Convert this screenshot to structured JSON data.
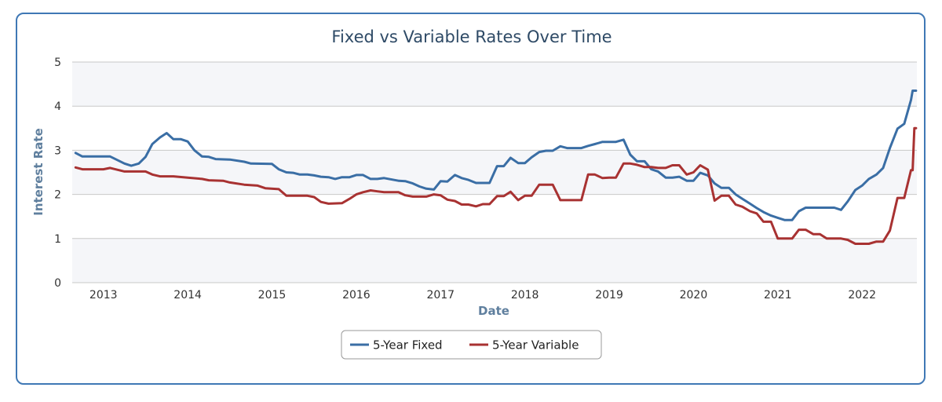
{
  "colors": {
    "frame": "#3f78b5",
    "fixed": "#3a6ea5",
    "variable": "#a83232",
    "grid": "#c8c8c8",
    "band": "#f5f6f9"
  },
  "chart_data": {
    "type": "line",
    "title": "Fixed vs Variable Rates Over Time",
    "xlabel": "Date",
    "ylabel": "Interest Rate",
    "xlim": [
      2012.63,
      2022.65
    ],
    "ylim": [
      0,
      5
    ],
    "yticks": [
      "0",
      "1",
      "2",
      "3",
      "4",
      "5"
    ],
    "xticks": [
      "2013",
      "2014",
      "2015",
      "2016",
      "2017",
      "2018",
      "2019",
      "2020",
      "2021",
      "2022"
    ],
    "grid": true,
    "legend": "bottom-center",
    "series": [
      {
        "name": "5-Year Fixed",
        "color": "#3a6ea5",
        "points": [
          [
            2012.67,
            2.94
          ],
          [
            2012.75,
            2.86
          ],
          [
            2013.0,
            2.86
          ],
          [
            2013.08,
            2.86
          ],
          [
            2013.25,
            2.7
          ],
          [
            2013.33,
            2.65
          ],
          [
            2013.42,
            2.7
          ],
          [
            2013.5,
            2.85
          ],
          [
            2013.58,
            3.14
          ],
          [
            2013.67,
            3.29
          ],
          [
            2013.75,
            3.39
          ],
          [
            2013.83,
            3.25
          ],
          [
            2013.92,
            3.25
          ],
          [
            2014.0,
            3.2
          ],
          [
            2014.08,
            3.0
          ],
          [
            2014.17,
            2.86
          ],
          [
            2014.25,
            2.85
          ],
          [
            2014.33,
            2.8
          ],
          [
            2014.5,
            2.79
          ],
          [
            2014.67,
            2.74
          ],
          [
            2014.75,
            2.7
          ],
          [
            2015.0,
            2.69
          ],
          [
            2015.08,
            2.57
          ],
          [
            2015.17,
            2.5
          ],
          [
            2015.25,
            2.49
          ],
          [
            2015.33,
            2.45
          ],
          [
            2015.42,
            2.45
          ],
          [
            2015.5,
            2.43
          ],
          [
            2015.58,
            2.4
          ],
          [
            2015.67,
            2.39
          ],
          [
            2015.75,
            2.35
          ],
          [
            2015.83,
            2.39
          ],
          [
            2015.92,
            2.39
          ],
          [
            2016.0,
            2.44
          ],
          [
            2016.08,
            2.44
          ],
          [
            2016.17,
            2.35
          ],
          [
            2016.25,
            2.35
          ],
          [
            2016.33,
            2.37
          ],
          [
            2016.5,
            2.31
          ],
          [
            2016.58,
            2.3
          ],
          [
            2016.67,
            2.25
          ],
          [
            2016.75,
            2.18
          ],
          [
            2016.83,
            2.13
          ],
          [
            2016.92,
            2.11
          ],
          [
            2017.0,
            2.3
          ],
          [
            2017.08,
            2.29
          ],
          [
            2017.17,
            2.44
          ],
          [
            2017.25,
            2.37
          ],
          [
            2017.33,
            2.33
          ],
          [
            2017.42,
            2.26
          ],
          [
            2017.5,
            2.26
          ],
          [
            2017.58,
            2.26
          ],
          [
            2017.67,
            2.64
          ],
          [
            2017.75,
            2.64
          ],
          [
            2017.83,
            2.83
          ],
          [
            2017.92,
            2.71
          ],
          [
            2018.0,
            2.71
          ],
          [
            2018.08,
            2.84
          ],
          [
            2018.17,
            2.96
          ],
          [
            2018.25,
            2.99
          ],
          [
            2018.33,
            2.99
          ],
          [
            2018.42,
            3.09
          ],
          [
            2018.5,
            3.05
          ],
          [
            2018.67,
            3.05
          ],
          [
            2018.75,
            3.1
          ],
          [
            2018.83,
            3.14
          ],
          [
            2018.92,
            3.19
          ],
          [
            2019.08,
            3.19
          ],
          [
            2019.17,
            3.24
          ],
          [
            2019.25,
            2.9
          ],
          [
            2019.33,
            2.75
          ],
          [
            2019.42,
            2.75
          ],
          [
            2019.5,
            2.57
          ],
          [
            2019.58,
            2.52
          ],
          [
            2019.67,
            2.38
          ],
          [
            2019.75,
            2.38
          ],
          [
            2019.83,
            2.4
          ],
          [
            2019.92,
            2.31
          ],
          [
            2020.0,
            2.31
          ],
          [
            2020.08,
            2.49
          ],
          [
            2020.17,
            2.43
          ],
          [
            2020.25,
            2.25
          ],
          [
            2020.33,
            2.15
          ],
          [
            2020.42,
            2.15
          ],
          [
            2020.5,
            2.0
          ],
          [
            2020.58,
            1.9
          ],
          [
            2020.67,
            1.79
          ],
          [
            2020.75,
            1.69
          ],
          [
            2020.83,
            1.6
          ],
          [
            2020.92,
            1.52
          ],
          [
            2021.0,
            1.47
          ],
          [
            2021.08,
            1.42
          ],
          [
            2021.17,
            1.42
          ],
          [
            2021.25,
            1.62
          ],
          [
            2021.33,
            1.7
          ],
          [
            2021.5,
            1.7
          ],
          [
            2021.67,
            1.7
          ],
          [
            2021.75,
            1.65
          ],
          [
            2021.83,
            1.84
          ],
          [
            2021.92,
            2.1
          ],
          [
            2022.0,
            2.2
          ],
          [
            2022.08,
            2.35
          ],
          [
            2022.17,
            2.45
          ],
          [
            2022.25,
            2.6
          ],
          [
            2022.33,
            3.05
          ],
          [
            2022.42,
            3.49
          ],
          [
            2022.5,
            3.6
          ],
          [
            2022.58,
            4.14
          ],
          [
            2022.6,
            4.35
          ],
          [
            2022.64,
            4.35
          ]
        ]
      },
      {
        "name": "5-Year Variable",
        "color": "#a83232",
        "points": [
          [
            2012.67,
            2.61
          ],
          [
            2012.75,
            2.57
          ],
          [
            2013.0,
            2.57
          ],
          [
            2013.08,
            2.6
          ],
          [
            2013.25,
            2.52
          ],
          [
            2013.42,
            2.52
          ],
          [
            2013.5,
            2.52
          ],
          [
            2013.58,
            2.45
          ],
          [
            2013.67,
            2.41
          ],
          [
            2013.83,
            2.41
          ],
          [
            2014.0,
            2.38
          ],
          [
            2014.17,
            2.35
          ],
          [
            2014.25,
            2.32
          ],
          [
            2014.42,
            2.31
          ],
          [
            2014.5,
            2.27
          ],
          [
            2014.67,
            2.22
          ],
          [
            2014.83,
            2.2
          ],
          [
            2014.92,
            2.14
          ],
          [
            2015.08,
            2.12
          ],
          [
            2015.17,
            1.97
          ],
          [
            2015.25,
            1.97
          ],
          [
            2015.42,
            1.97
          ],
          [
            2015.5,
            1.94
          ],
          [
            2015.58,
            1.83
          ],
          [
            2015.67,
            1.79
          ],
          [
            2015.83,
            1.8
          ],
          [
            2015.92,
            1.9
          ],
          [
            2016.0,
            2.0
          ],
          [
            2016.08,
            2.05
          ],
          [
            2016.17,
            2.09
          ],
          [
            2016.25,
            2.07
          ],
          [
            2016.33,
            2.05
          ],
          [
            2016.5,
            2.05
          ],
          [
            2016.58,
            1.98
          ],
          [
            2016.67,
            1.95
          ],
          [
            2016.83,
            1.95
          ],
          [
            2016.92,
            2.0
          ],
          [
            2017.0,
            1.98
          ],
          [
            2017.08,
            1.88
          ],
          [
            2017.17,
            1.85
          ],
          [
            2017.25,
            1.77
          ],
          [
            2017.33,
            1.77
          ],
          [
            2017.42,
            1.73
          ],
          [
            2017.5,
            1.78
          ],
          [
            2017.58,
            1.78
          ],
          [
            2017.67,
            1.96
          ],
          [
            2017.75,
            1.96
          ],
          [
            2017.83,
            2.06
          ],
          [
            2017.92,
            1.87
          ],
          [
            2018.0,
            1.97
          ],
          [
            2018.08,
            1.97
          ],
          [
            2018.17,
            2.22
          ],
          [
            2018.25,
            2.22
          ],
          [
            2018.33,
            2.22
          ],
          [
            2018.42,
            1.87
          ],
          [
            2018.5,
            1.87
          ],
          [
            2018.58,
            1.87
          ],
          [
            2018.67,
            1.87
          ],
          [
            2018.75,
            2.45
          ],
          [
            2018.83,
            2.45
          ],
          [
            2018.92,
            2.37
          ],
          [
            2019.0,
            2.38
          ],
          [
            2019.08,
            2.38
          ],
          [
            2019.17,
            2.7
          ],
          [
            2019.25,
            2.7
          ],
          [
            2019.33,
            2.67
          ],
          [
            2019.42,
            2.62
          ],
          [
            2019.5,
            2.62
          ],
          [
            2019.58,
            2.6
          ],
          [
            2019.67,
            2.6
          ],
          [
            2019.75,
            2.66
          ],
          [
            2019.83,
            2.66
          ],
          [
            2019.92,
            2.45
          ],
          [
            2020.0,
            2.5
          ],
          [
            2020.08,
            2.66
          ],
          [
            2020.17,
            2.56
          ],
          [
            2020.25,
            1.86
          ],
          [
            2020.33,
            1.97
          ],
          [
            2020.42,
            1.97
          ],
          [
            2020.5,
            1.77
          ],
          [
            2020.58,
            1.72
          ],
          [
            2020.67,
            1.62
          ],
          [
            2020.75,
            1.57
          ],
          [
            2020.83,
            1.38
          ],
          [
            2020.92,
            1.38
          ],
          [
            2021.0,
            1.0
          ],
          [
            2021.08,
            1.0
          ],
          [
            2021.17,
            1.0
          ],
          [
            2021.25,
            1.2
          ],
          [
            2021.33,
            1.2
          ],
          [
            2021.42,
            1.1
          ],
          [
            2021.5,
            1.1
          ],
          [
            2021.58,
            1.0
          ],
          [
            2021.75,
            1.0
          ],
          [
            2021.83,
            0.97
          ],
          [
            2021.92,
            0.88
          ],
          [
            2022.08,
            0.88
          ],
          [
            2022.17,
            0.93
          ],
          [
            2022.25,
            0.93
          ],
          [
            2022.33,
            1.18
          ],
          [
            2022.42,
            1.92
          ],
          [
            2022.5,
            1.92
          ],
          [
            2022.58,
            2.55
          ],
          [
            2022.6,
            2.55
          ],
          [
            2022.62,
            3.5
          ],
          [
            2022.64,
            3.5
          ]
        ]
      }
    ]
  }
}
